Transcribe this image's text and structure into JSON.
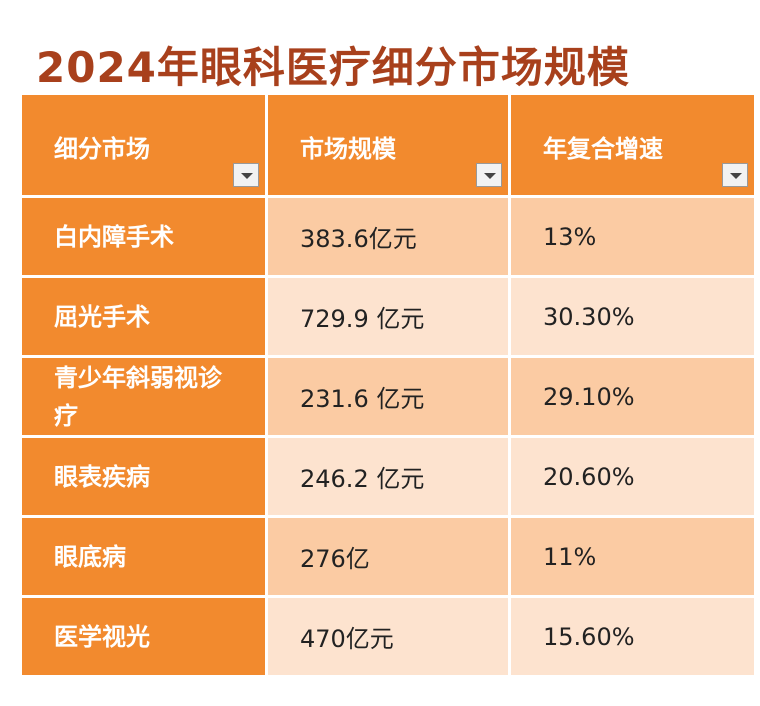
{
  "header": {
    "title": "2024年眼科医疗细分市场规模"
  },
  "table": {
    "columns": [
      "细分市场",
      "市场规模",
      "年复合增速"
    ],
    "rows": [
      [
        "白内障手术",
        "383.6亿元",
        "13%"
      ],
      [
        "屈光手术",
        "729.9 亿元",
        "30.30%"
      ],
      [
        "青少年斜弱视诊疗",
        "231.6 亿元",
        "29.10%"
      ],
      [
        "眼表疾病",
        "246.2 亿元",
        "20.60%"
      ],
      [
        "眼底病",
        "276亿",
        "11%"
      ],
      [
        "医学视光",
        "470亿元",
        "15.60%"
      ]
    ]
  }
}
